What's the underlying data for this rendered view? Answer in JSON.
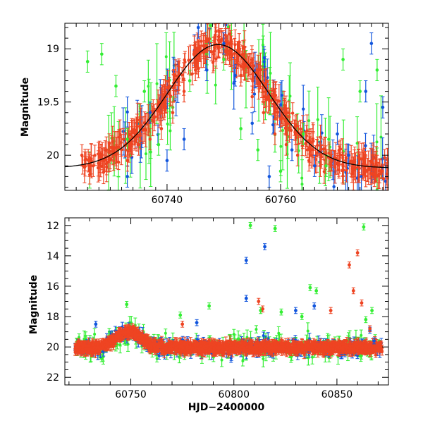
{
  "chart_data": [
    {
      "type": "scatter",
      "title": "",
      "xlabel": "",
      "ylabel": "Magnitude",
      "xlim": [
        60722,
        60779
      ],
      "ylim": [
        20.33,
        18.76
      ],
      "y_inverted": true,
      "xticks": [
        60740,
        60760
      ],
      "xtick_labels": [
        "60740",
        "60760"
      ],
      "yticks": [
        19,
        19.5,
        20
      ],
      "ytick_labels": [
        "19",
        "19.5",
        "20"
      ],
      "grid": false,
      "legend": "none",
      "colors": {
        "green": "#33ee33",
        "blue": "#1155dd",
        "red": "#ee4422",
        "model": "#000000"
      },
      "model_curve": {
        "description_kind": "lensing-like peak",
        "peak_x": 60749,
        "peak_mag": 18.96,
        "baseline_mag": 20.12,
        "timescale_days": 8.5
      },
      "series": [
        {
          "color_key": "green",
          "sample_points": [
            [
              60726,
              19.12
            ],
            [
              60728.5,
              19.05
            ],
            [
              60731,
              19.35
            ],
            [
              60733,
              19.85
            ],
            [
              60736,
              19.4
            ],
            [
              60738.5,
              19.9
            ],
            [
              60741,
              19.55
            ],
            [
              60744,
              19.3
            ],
            [
              60747,
              19.05
            ],
            [
              60750,
              19.1
            ],
            [
              60753,
              19.75
            ],
            [
              60756,
              19.95
            ],
            [
              60760,
              20.15
            ],
            [
              60764,
              19.8
            ],
            [
              60768,
              20.1
            ],
            [
              60771,
              19.1
            ],
            [
              60774,
              19.4
            ],
            [
              60777,
              19.2
            ]
          ]
        },
        {
          "color_key": "blue",
          "sample_points": [
            [
              60733,
              20.2
            ],
            [
              60737,
              19.6
            ],
            [
              60740,
              20.05
            ],
            [
              60743,
              19.85
            ],
            [
              60745.5,
              18.8
            ],
            [
              60747,
              19.2
            ],
            [
              60750,
              18.95
            ],
            [
              60752,
              19.25
            ],
            [
              60755,
              19.7
            ],
            [
              60758,
              20.2
            ],
            [
              60762,
              19.95
            ],
            [
              60766,
              20.1
            ],
            [
              60770,
              19.8
            ],
            [
              60772,
              20.0
            ],
            [
              60775,
              19.4
            ],
            [
              60776,
              18.95
            ],
            [
              60778,
              19.55
            ]
          ]
        },
        {
          "color_key": "red",
          "sample_points": [
            [
              60725,
              20.0
            ],
            [
              60727,
              20.1
            ],
            [
              60729,
              20.05
            ],
            [
              60731,
              20.0
            ],
            [
              60733,
              20.05
            ],
            [
              60735,
              19.9
            ],
            [
              60737,
              19.85
            ],
            [
              60739,
              19.75
            ],
            [
              60741,
              19.6
            ],
            [
              60743,
              19.4
            ],
            [
              60745,
              19.2
            ],
            [
              60747,
              19.0
            ],
            [
              60749,
              18.97
            ],
            [
              60751,
              19.05
            ],
            [
              60753,
              19.25
            ],
            [
              60755,
              19.45
            ],
            [
              60757,
              19.6
            ],
            [
              60759,
              19.8
            ],
            [
              60761,
              19.9
            ],
            [
              60763,
              20.0
            ],
            [
              60765,
              20.05
            ],
            [
              60767,
              20.1
            ],
            [
              60769,
              20.05
            ],
            [
              60771,
              20.1
            ],
            [
              60773,
              20.05
            ],
            [
              60775,
              20.1
            ],
            [
              60777,
              20.1
            ]
          ]
        }
      ]
    },
    {
      "type": "scatter",
      "title": "",
      "xlabel": "HJD−2400000",
      "ylabel": "Magnitude",
      "xlim": [
        60718,
        60875
      ],
      "ylim": [
        22.5,
        11.5
      ],
      "y_inverted": true,
      "xticks": [
        60750,
        60800,
        60850
      ],
      "xtick_labels": [
        "60750",
        "60800",
        "60850"
      ],
      "yticks": [
        12,
        14,
        16,
        18,
        20,
        22
      ],
      "ytick_labels": [
        "12",
        "14",
        "16",
        "18",
        "20",
        "22"
      ],
      "grid": false,
      "legend": "none",
      "baseline_mag": 20.05,
      "peak": {
        "x": 60749,
        "mag": 19.0
      },
      "series": [
        {
          "color_key": "green",
          "outliers": [
            [
              60748,
              17.2
            ],
            [
              60774,
              17.9
            ],
            [
              60788,
              17.3
            ],
            [
              60808,
              12.0
            ],
            [
              60813,
              17.6
            ],
            [
              60820,
              12.2
            ],
            [
              60823,
              17.7
            ],
            [
              60833,
              18.0
            ],
            [
              60837,
              16.1
            ],
            [
              60840,
              16.3
            ],
            [
              60863,
              12.1
            ],
            [
              60867,
              17.6
            ],
            [
              60864,
              18.2
            ]
          ]
        },
        {
          "color_key": "blue",
          "outliers": [
            [
              60733,
              18.5
            ],
            [
              60782,
              18.4
            ],
            [
              60806,
              14.3
            ],
            [
              60806,
              16.8
            ],
            [
              60815,
              13.4
            ],
            [
              60830,
              17.6
            ],
            [
              60839,
              17.3
            ],
            [
              60866,
              18.9
            ],
            [
              60868,
              19.6
            ]
          ]
        },
        {
          "color_key": "red",
          "outliers": [
            [
              60775,
              18.5
            ],
            [
              60812,
              17.0
            ],
            [
              60814,
              17.5
            ],
            [
              60847,
              17.6
            ],
            [
              60856,
              14.6
            ],
            [
              60860,
              13.8
            ],
            [
              60858,
              16.3
            ],
            [
              60862,
              17.1
            ],
            [
              60866,
              18.8
            ]
          ]
        }
      ]
    }
  ]
}
